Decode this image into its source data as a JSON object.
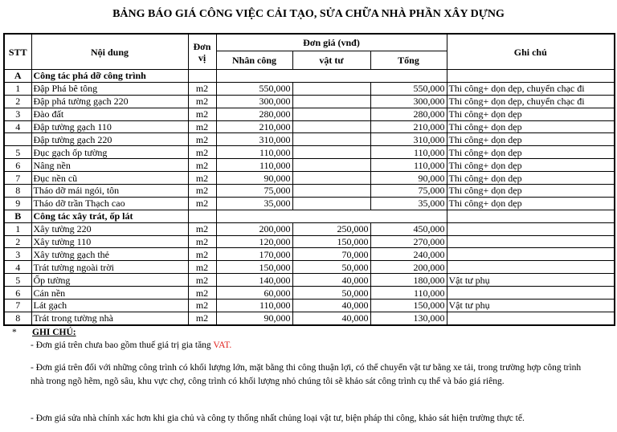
{
  "title": "BẢNG BÁO GIÁ CÔNG VIỆC CẢI TẠO, SỬA CHỮA NHÀ PHẦN XÂY DỰNG",
  "headers": {
    "stt": "STT",
    "noi_dung": "Nội dung",
    "don_vi": "Đơn vị",
    "don_gia": "Đơn giá (vnđ)",
    "nhan_cong": "Nhân công",
    "vat_tu": "vật tư",
    "tong": "Tổng",
    "ghi_chu": "Ghi chú"
  },
  "sections": [
    {
      "code": "A",
      "title": "Công tác phá dỡ công trình",
      "rows": [
        {
          "stt": "1",
          "name": "Đập Phá bê tông",
          "unit": "m2",
          "labor": "550,000",
          "material": "",
          "total": "550,000",
          "note": "Thi công+ dọn dẹp, chuyển chạc đi"
        },
        {
          "stt": "2",
          "name": "Đập phá tường gạch 220",
          "unit": "m2",
          "labor": "300,000",
          "material": "",
          "total": "300,000",
          "note": "Thi công+ dọn dẹp, chuyển chạc đi"
        },
        {
          "stt": "3",
          "name": "Đào đất",
          "unit": "m2",
          "labor": "280,000",
          "material": "",
          "total": "280,000",
          "note": "Thi công+ dọn dẹp"
        },
        {
          "stt": "4",
          "name": "Đập tường gạch 110",
          "unit": "m2",
          "labor": "210,000",
          "material": "",
          "total": "210,000",
          "note": "Thi công+ dọn dẹp"
        },
        {
          "stt": "",
          "name": "Đập tường gạch 220",
          "unit": "m2",
          "labor": "310,000",
          "material": "",
          "total": "310,000",
          "note": "Thi công+ dọn dẹp"
        },
        {
          "stt": "5",
          "name": "Đục gạch ốp tường",
          "unit": "m2",
          "labor": "110,000",
          "material": "",
          "total": "110,000",
          "note": "Thi công+ dọn dẹp"
        },
        {
          "stt": "6",
          "name": "Nâng nền",
          "unit": "m2",
          "labor": "110,000",
          "material": "",
          "total": "110,000",
          "note": "Thi công+ dọn dẹp"
        },
        {
          "stt": "7",
          "name": "Đục nền cũ",
          "unit": "m2",
          "labor": "90,000",
          "material": "",
          "total": "90,000",
          "note": "Thi công+ dọn dẹp"
        },
        {
          "stt": "8",
          "name": "Tháo dỡ mái ngói, tôn",
          "unit": "m2",
          "labor": "75,000",
          "material": "",
          "total": "75,000",
          "note": "Thi công+ dọn dẹp"
        },
        {
          "stt": "9",
          "name": "Tháo dỡ trần Thạch cao",
          "unit": "m2",
          "labor": "35,000",
          "material": "",
          "total": "35,000",
          "note": "Thi công+ dọn dẹp"
        }
      ]
    },
    {
      "code": "B",
      "title": "Công tác xây trát, ốp lát",
      "rows": [
        {
          "stt": "1",
          "name": "Xây tường 220",
          "unit": "m2",
          "labor": "200,000",
          "material": "250,000",
          "total": "450,000",
          "note": ""
        },
        {
          "stt": "2",
          "name": "Xây tường 110",
          "unit": "m2",
          "labor": "120,000",
          "material": "150,000",
          "total": "270,000",
          "note": ""
        },
        {
          "stt": "3",
          "name": "Xây tường gạch thẻ",
          "unit": "m2",
          "labor": "170,000",
          "material": "70,000",
          "total": "240,000",
          "note": ""
        },
        {
          "stt": "4",
          "name": "Trát tường ngoài trời",
          "unit": "m2",
          "labor": "150,000",
          "material": "50,000",
          "total": "200,000",
          "note": ""
        },
        {
          "stt": "5",
          "name": "Ốp tường",
          "unit": "m2",
          "labor": "140,000",
          "material": "40,000",
          "total": "180,000",
          "note": "Vật tư phụ"
        },
        {
          "stt": "6",
          "name": "Cán nền",
          "unit": "m2",
          "labor": "60,000",
          "material": "50,000",
          "total": "110,000",
          "note": ""
        },
        {
          "stt": "7",
          "name": "Lát gạch",
          "unit": "m2",
          "labor": "110,000",
          "material": "40,000",
          "total": "150,000",
          "note": "Vật tư phụ"
        },
        {
          "stt": "8",
          "name": "Trát trong tường nhà",
          "unit": "m2",
          "labor": "90,000",
          "material": "40,000",
          "total": "130,000",
          "note": ""
        }
      ]
    }
  ],
  "notes": {
    "star": "*",
    "heading": "GHI CHÚ:",
    "line1": "- Đơn giá trên chưa bao gồm thuế giá trị gia tăng ",
    "line1_vat": "VAT.",
    "line2a": "- Đơn giá trên đối với những công trình có khối lượng lớn, mặt bằng thi công thuận lợi, có thể chuyển vật tư bằng xe tải, trong trường hợp công trình",
    "line2b": "nhà trong ngõ hẽm, ngõ sâu, khu vực chợ, công trình có khối lượng nhỏ chúng tôi sẽ khảo sát công trình cụ thể và báo giá riêng.",
    "line3": "- Đơn giá sửa nhà chính xác hơn khi gia chủ và công ty thống nhất chủng loại vật tư, biện pháp thi công, khảo sát hiện trường thực tế."
  },
  "colors": {
    "vat": "#e0211d"
  }
}
